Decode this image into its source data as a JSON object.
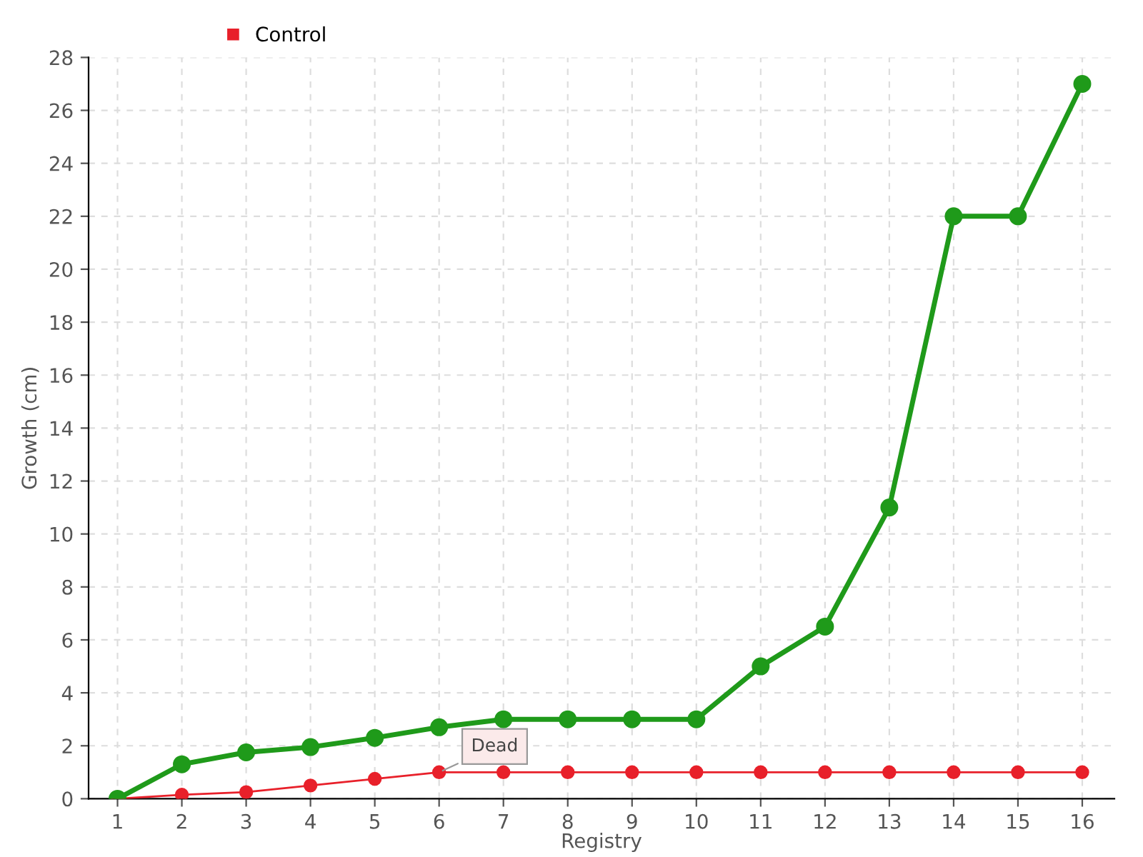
{
  "chart_data": {
    "type": "line",
    "xlabel": "Registry",
    "ylabel": "Growth (cm)",
    "x": [
      1,
      2,
      3,
      4,
      5,
      6,
      7,
      8,
      9,
      10,
      11,
      12,
      13,
      14,
      15,
      16
    ],
    "series": [
      {
        "color": "#1f9a1a",
        "values": [
          0,
          1.3,
          1.75,
          1.95,
          2.3,
          2.7,
          3,
          3,
          3,
          3,
          5,
          6.5,
          11,
          22,
          22,
          27
        ]
      },
      {
        "name": "Control",
        "color": "#e8202a",
        "values": [
          0,
          0.15,
          0.25,
          0.5,
          0.75,
          1,
          1,
          1,
          1,
          1,
          1,
          1,
          1,
          1,
          1,
          1
        ]
      }
    ],
    "annotations": [
      {
        "text": "Dead",
        "x": 6,
        "y": 1
      }
    ],
    "xlim": [
      0.55,
      16.5
    ],
    "xticks": [
      1,
      2,
      3,
      4,
      5,
      6,
      7,
      8,
      9,
      10,
      11,
      12,
      13,
      14,
      15,
      16
    ],
    "ylim": [
      0,
      28
    ],
    "yticks": [
      0,
      2,
      4,
      6,
      8,
      10,
      12,
      14,
      16,
      18,
      20,
      22,
      24,
      26,
      28
    ],
    "grid": true,
    "legend": "top left",
    "marker": "circle",
    "line_style": "solid"
  }
}
